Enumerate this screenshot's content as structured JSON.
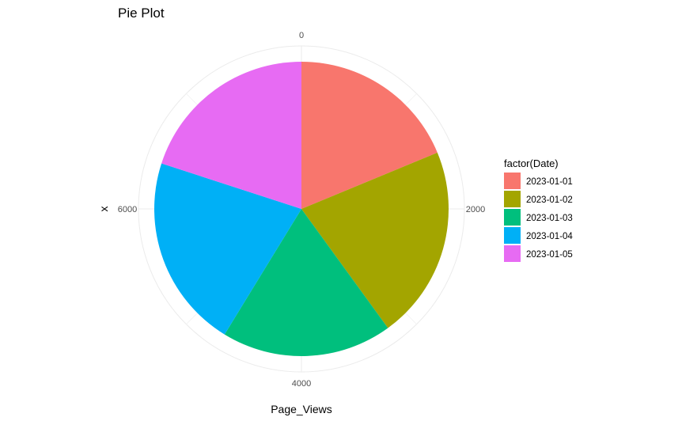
{
  "chart_data": {
    "type": "pie",
    "title": "Pie Plot",
    "xlabel": "Page_Views",
    "ylabel": "x",
    "legend_title": "factor(Date)",
    "legend_position": "right",
    "categories": [
      "2023-01-01",
      "2023-01-02",
      "2023-01-03",
      "2023-01-04",
      "2023-01-05"
    ],
    "values": [
      1500,
      1700,
      1500,
      1700,
      1600
    ],
    "colors": [
      "#F8766D",
      "#A3A500",
      "#00BF7D",
      "#00B0F6",
      "#E76BF3"
    ],
    "theta_ticks": [
      0,
      2000,
      4000,
      6000
    ],
    "theta_tick_labels": [
      "0",
      "2000",
      "4000",
      "6000"
    ],
    "grid": true
  }
}
